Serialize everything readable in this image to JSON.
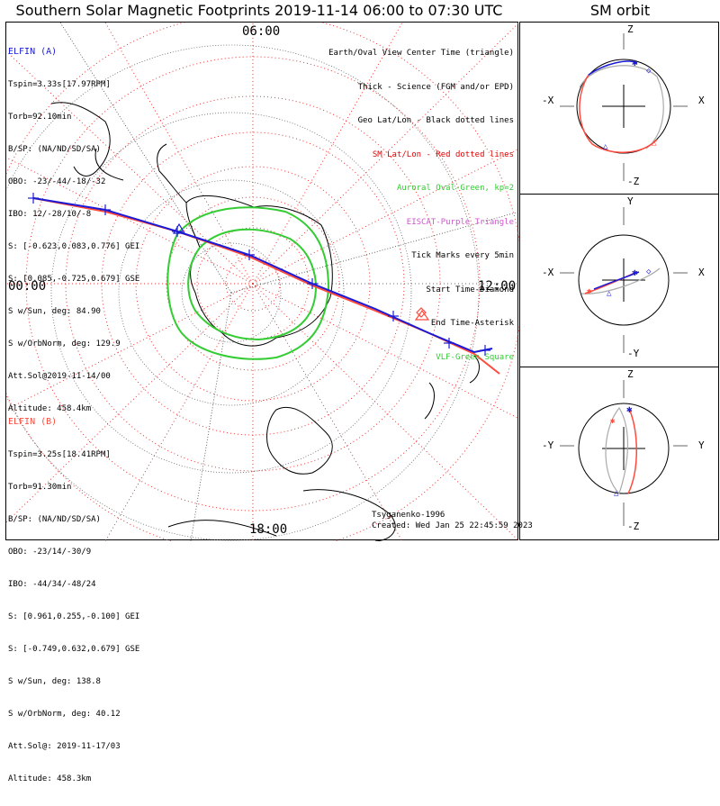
{
  "title": "Southern Solar Magnetic Footprints 2019-11-14 06:00 to 07:30 UTC",
  "side_title": "SM orbit",
  "map": {
    "mlt_labels": {
      "top": "06:00",
      "left": "00:00",
      "right": "12:00",
      "bottom": "18:00"
    }
  },
  "elfin_a": {
    "name": "ELFIN (A)",
    "lines": [
      "Tspin=3.33s[17.97RPM]",
      "Torb=92.10min",
      "B/SP: (NA/ND/SD/SA)",
      "OBO: -23/-44/-18/-32",
      "IBO: 12/-28/10/-8",
      "S: [-0.623,0.083,0.776] GEI",
      "S: [0.085,-0.725,0.679] GSE",
      "S w/Sun, deg: 84.90",
      "S w/OrbNorm, deg: 129.9",
      "Att.Sol@2019-11-14/00",
      "Altitude: 458.4km"
    ],
    "color": "#1a1ad6"
  },
  "elfin_b": {
    "name": "ELFIN (B)",
    "lines": [
      "Tspin=3.25s[18.41RPM]",
      "Torb=91.30min",
      "B/SP: (NA/ND/SD/SA)",
      "OBO: -23/14/-30/9",
      "IBO: -44/34/-48/24",
      "S: [0.961,0.255,-0.100] GEI",
      "S: [-0.749,0.632,0.679] GSE",
      "S w/Sun, deg: 138.8",
      "S w/OrbNorm, deg: 40.12",
      "Att.Sol@: 2019-11-17/03",
      "Altitude: 458.3km"
    ],
    "color": "#ff4a3d"
  },
  "legend": [
    {
      "text": "Earth/Oval View Center Time (triangle)",
      "color": "#000000"
    },
    {
      "text": "Thick - Science (FGM and/or EPD)",
      "color": "#000000"
    },
    {
      "text": "Geo Lat/Lon - Black dotted lines",
      "color": "#000000"
    },
    {
      "text": "SM Lat/Lon - Red dotted lines",
      "color": "#e00000"
    },
    {
      "text": "Auroral Oval-Green, kp=2",
      "color": "#33cc33"
    },
    {
      "text": "EISCAT-Purple Triangle",
      "color": "#cc55cc"
    },
    {
      "text": "Tick Marks every 5min",
      "color": "#000000"
    },
    {
      "text": "Start Time-Diamond",
      "color": "#000000"
    },
    {
      "text": "End Time-Asterisk",
      "color": "#000000"
    },
    {
      "text": "VLF-Green Square",
      "color": "#33cc33"
    }
  ],
  "credit": "Tsyganenko-1996",
  "created": "Created: Wed Jan 25 22:45:59 2023",
  "orbit_panels": [
    {
      "top": "Z",
      "bottom": "-Z",
      "left": "-X",
      "right": "X"
    },
    {
      "top": "Y",
      "bottom": "-Y",
      "left": "-X",
      "right": "X"
    },
    {
      "top": "Z",
      "bottom": "-Z",
      "left": "-Y",
      "right": "Y"
    }
  ]
}
